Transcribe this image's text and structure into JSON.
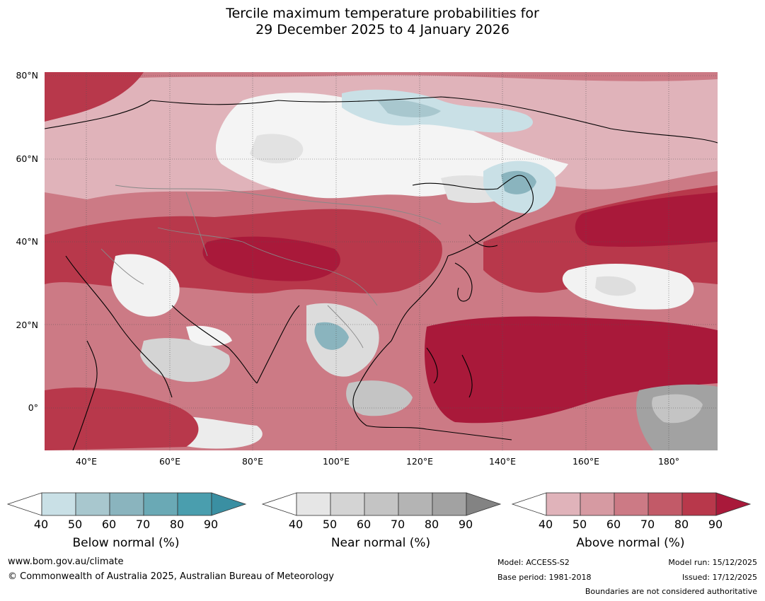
{
  "title": {
    "line1": "Tercile maximum temperature probabilities for",
    "line2": "29 December 2025 to 4 January 2026"
  },
  "map": {
    "latitude_labels": [
      "80°N",
      "60°N",
      "40°N",
      "20°N",
      "0°"
    ],
    "longitude_labels": [
      "40°E",
      "60°E",
      "80°E",
      "100°E",
      "120°E",
      "140°E",
      "160°E",
      "180°"
    ],
    "extent": {
      "lon_min": 30,
      "lon_max": 191,
      "lat_min": -10,
      "lat_max": 81
    }
  },
  "colorbars": {
    "below": {
      "title": "Below normal (%)",
      "ticks": [
        "40",
        "50",
        "60",
        "70",
        "80",
        "90"
      ],
      "colors": [
        "#ffffff",
        "#c9e0e6",
        "#a8c7ce",
        "#8ab4be",
        "#6aa9b5",
        "#4a9eae",
        "#3a8fa2"
      ]
    },
    "near": {
      "title": "Near normal (%)",
      "ticks": [
        "40",
        "50",
        "60",
        "70",
        "80",
        "90"
      ],
      "colors": [
        "#ffffff",
        "#e6e6e6",
        "#d4d4d4",
        "#c4c4c4",
        "#b4b4b4",
        "#a2a2a2",
        "#838383"
      ]
    },
    "above": {
      "title": "Above normal (%)",
      "ticks": [
        "40",
        "50",
        "60",
        "70",
        "80",
        "90"
      ],
      "colors": [
        "#ffffff",
        "#e0b3ba",
        "#d69aa2",
        "#cc7a85",
        "#c25a68",
        "#b8384b",
        "#a9193a"
      ]
    }
  },
  "footer": {
    "url": "www.bom.gov.au/climate",
    "copyright": "© Commonwealth of Australia 2025, Australian Bureau of Meteorology",
    "model": "Model: ACCESS-S2",
    "base_period": "Base period: 1981-2018",
    "model_run": "Model run: 15/12/2025",
    "issued": "Issued: 17/12/2025",
    "disclaimer": "Boundaries are not considered authoritative"
  }
}
